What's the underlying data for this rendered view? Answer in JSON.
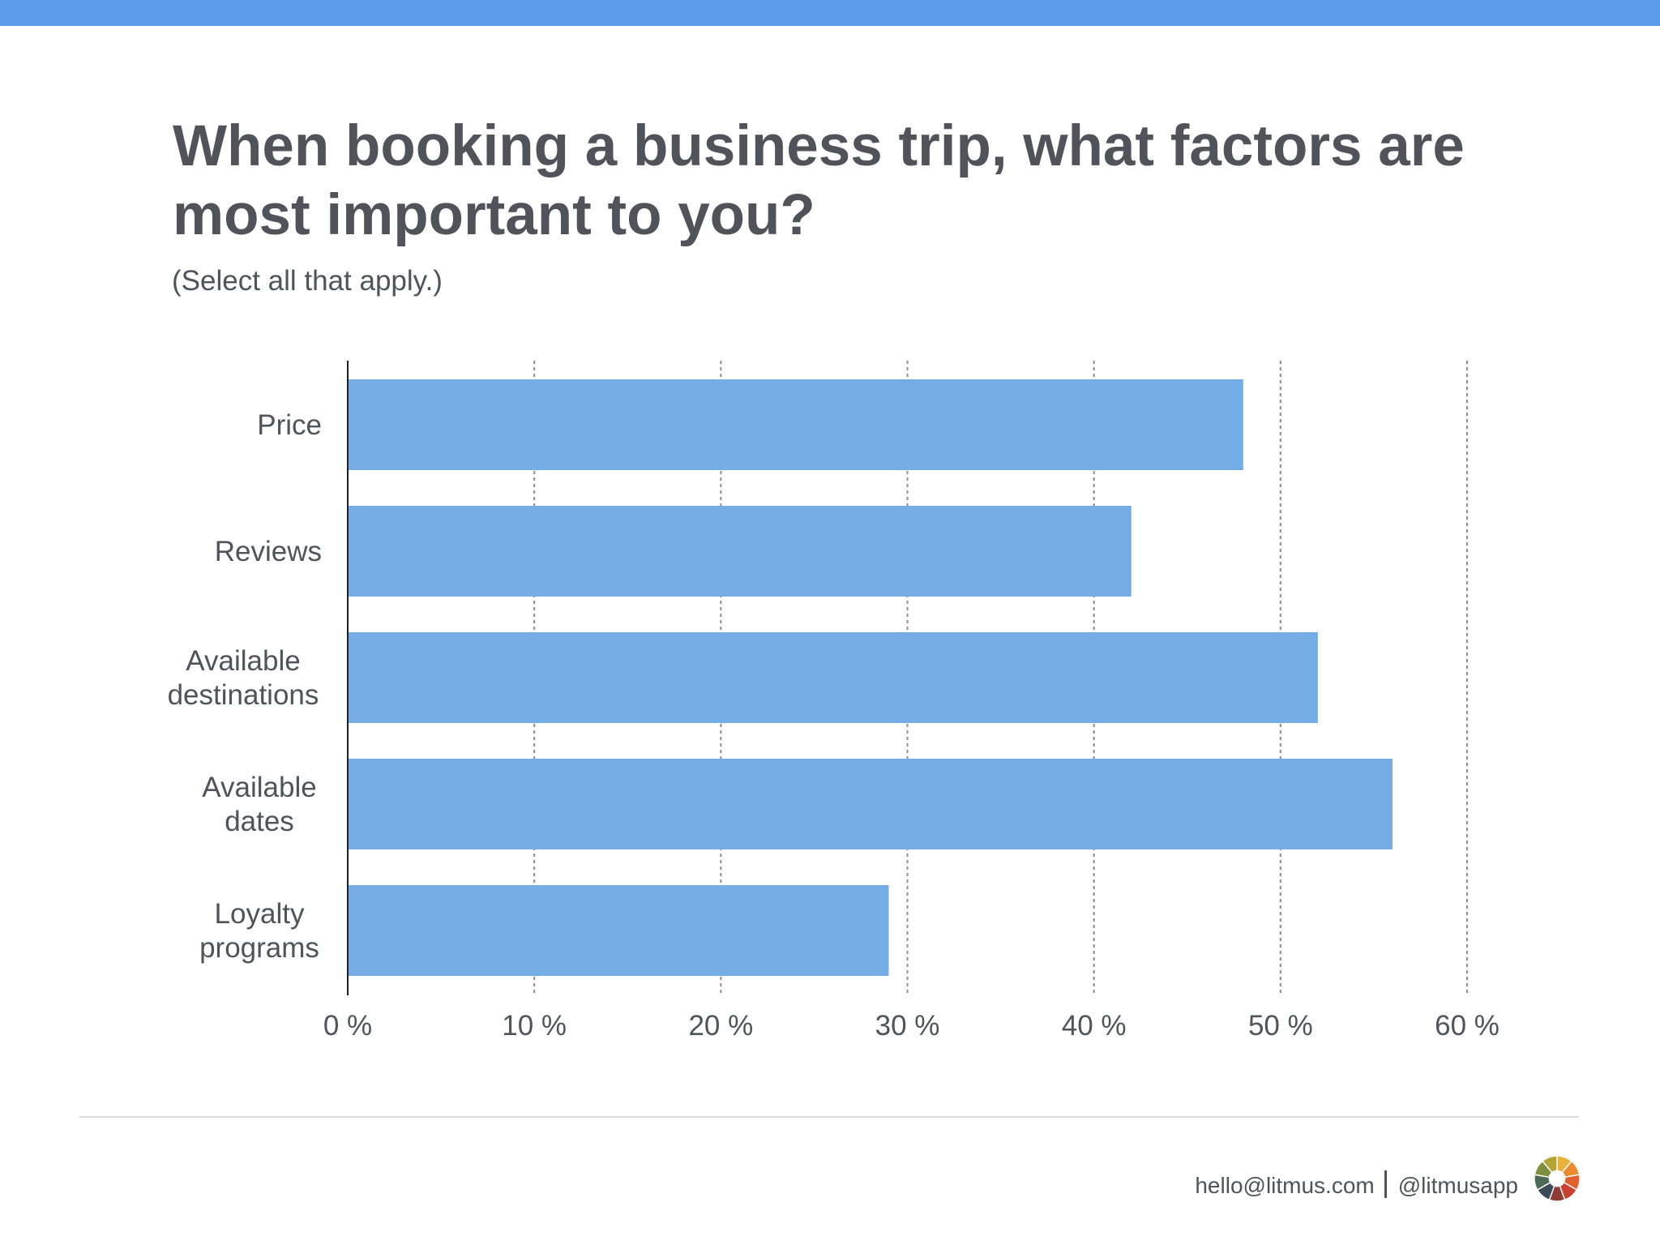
{
  "header": {
    "title": "When booking a business trip, what factors are most important to you?",
    "subtitle": "(Select all that apply.)"
  },
  "colors": {
    "accent_bar": "#5a9ce6",
    "bar_fill": "#74ace6",
    "text": "#50535a",
    "grid": "#8a8d92"
  },
  "chart_data": {
    "type": "bar",
    "orientation": "horizontal",
    "categories": [
      "Price",
      "Reviews",
      "Available destinations",
      "Available dates",
      "Loyalty programs"
    ],
    "values": [
      48,
      42,
      52,
      56,
      29
    ],
    "xlim": [
      0,
      60
    ],
    "ticks": [
      0,
      10,
      20,
      30,
      40,
      50,
      60
    ],
    "tick_suffix": " %",
    "grid": true,
    "grid_style": "dashed-vertical"
  },
  "footer": {
    "email": "hello@litmus.com",
    "handle": "@litmusapp",
    "logo_icon": "litmus-logo-icon"
  }
}
